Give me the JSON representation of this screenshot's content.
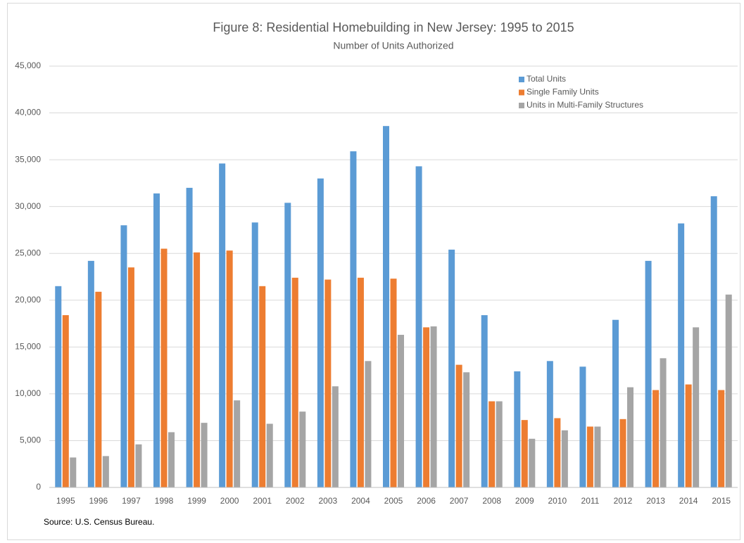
{
  "chart_data": {
    "type": "bar",
    "title": "Figure 8: Residential Homebuilding in New Jersey: 1995 to 2015",
    "subtitle": "Number of Units Authorized",
    "source": "Source: U.S. Census Bureau.",
    "categories": [
      "1995",
      "1996",
      "1997",
      "1998",
      "1999",
      "2000",
      "2001",
      "2002",
      "2003",
      "2004",
      "2005",
      "2006",
      "2007",
      "2008",
      "2009",
      "2010",
      "2011",
      "2012",
      "2013",
      "2014",
      "2015"
    ],
    "series": [
      {
        "name": "Total Units",
        "color": "#5b9bd5",
        "values": [
          21500,
          24200,
          28000,
          31400,
          32000,
          34600,
          28300,
          30400,
          33000,
          35900,
          38600,
          34300,
          25400,
          18400,
          12400,
          13500,
          12900,
          17900,
          24200,
          28200,
          31100
        ]
      },
      {
        "name": "Single Family Units",
        "color": "#ed7d31",
        "values": [
          18400,
          20900,
          23500,
          25500,
          25100,
          25300,
          21500,
          22400,
          22200,
          22400,
          22300,
          17100,
          13100,
          9200,
          7200,
          7400,
          6500,
          7300,
          10400,
          11000,
          10400
        ]
      },
      {
        "name": "Units in Multi-Family Structures",
        "color": "#a5a5a5",
        "values": [
          3200,
          3350,
          4600,
          5900,
          6900,
          9300,
          6800,
          8100,
          10800,
          13500,
          16300,
          17200,
          12300,
          9200,
          5200,
          6100,
          6500,
          10700,
          13800,
          17100,
          20600
        ]
      }
    ],
    "ylim": [
      0,
      45000
    ],
    "yticks": [
      0,
      {
        "value": 5000,
        "label": "5,000"
      },
      {
        "value": 10000,
        "label": "10,000"
      },
      {
        "value": 15000,
        "label": "15,000"
      },
      {
        "value": 20000,
        "label": "20,000"
      },
      {
        "value": 25000,
        "label": "25,000"
      },
      {
        "value": 30000,
        "label": "30,000"
      },
      {
        "value": 35000,
        "label": "35,000"
      },
      {
        "value": 40000,
        "label": "40,000"
      },
      {
        "value": 45000,
        "label": "45,000"
      }
    ],
    "grid": true,
    "legend": "top-right"
  }
}
